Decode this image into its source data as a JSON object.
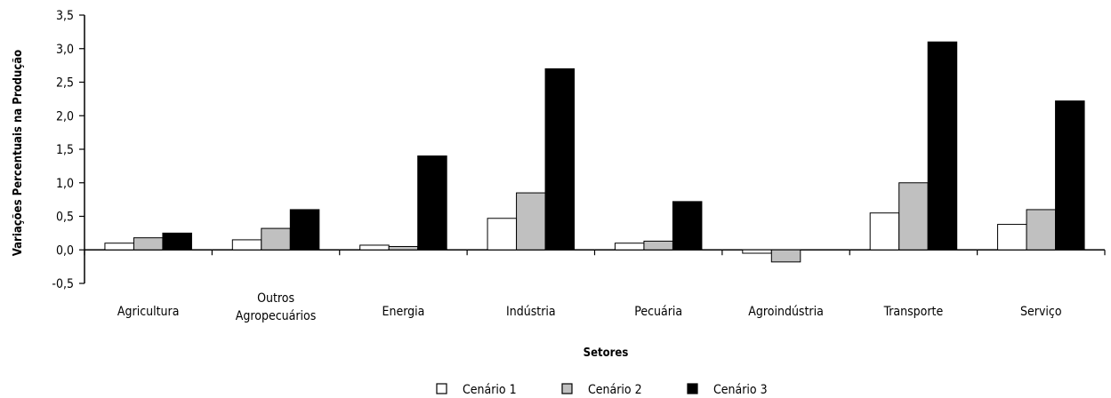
{
  "chart_data": {
    "type": "bar",
    "xlabel": "Setores",
    "ylabel": "Variações Percentuais na Produção",
    "ylim": [
      -0.5,
      3.5
    ],
    "yticks": [
      "-0,5",
      "0,0",
      "0,5",
      "1,0",
      "1,5",
      "2,0",
      "2,5",
      "3,0",
      "3,5"
    ],
    "yticks_values": [
      -0.5,
      0,
      0.5,
      1,
      1.5,
      2,
      2.5,
      3,
      3.5
    ],
    "grid": false,
    "legend_position": "bottom-center",
    "categories": [
      [
        "Agricultura"
      ],
      [
        "Outros",
        "Agropecuários"
      ],
      [
        "Energia"
      ],
      [
        "Indústria"
      ],
      [
        "Pecuária"
      ],
      [
        "Agroindústria"
      ],
      [
        "Transporte"
      ],
      [
        "Serviço"
      ]
    ],
    "series": [
      {
        "name": "Cenário 1",
        "color": "#ffffff",
        "values": [
          0.1,
          0.15,
          0.07,
          0.47,
          0.1,
          -0.05,
          0.55,
          0.38
        ]
      },
      {
        "name": "Cenário 2",
        "color": "#c0c0c0",
        "values": [
          0.18,
          0.32,
          0.05,
          0.85,
          0.13,
          -0.18,
          1.0,
          0.6
        ]
      },
      {
        "name": "Cenário 3",
        "color": "#000000",
        "values": [
          0.25,
          0.6,
          1.4,
          2.7,
          0.72,
          0.0,
          3.1,
          2.22
        ]
      }
    ]
  }
}
